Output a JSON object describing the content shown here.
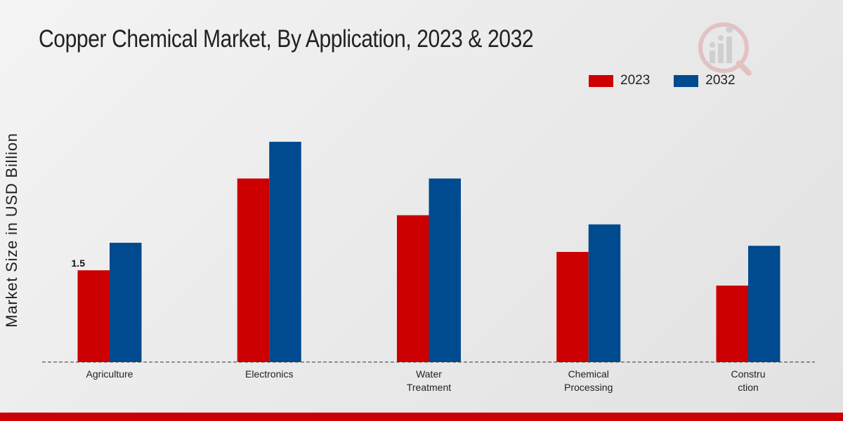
{
  "chart_data": {
    "type": "bar",
    "title": "Copper Chemical Market, By Application, 2023 & 2032",
    "xlabel": "",
    "ylabel": "Market Size in USD Billion",
    "categories": [
      "Agriculture",
      "Electronics",
      "Water\nTreatment",
      "Chemical\nProcessing",
      "Constru\nction"
    ],
    "series": [
      {
        "name": "2023",
        "color": "#cc0000",
        "values": [
          1.5,
          3.0,
          2.4,
          1.8,
          1.25
        ]
      },
      {
        "name": "2032",
        "color": "#004a8f",
        "values": [
          1.95,
          3.6,
          3.0,
          2.25,
          1.9
        ]
      }
    ],
    "data_labels": [
      {
        "series": 0,
        "index": 0,
        "text": "1.5"
      }
    ],
    "ylim": [
      0,
      5
    ],
    "grid": false,
    "legend_position": "top-right"
  }
}
